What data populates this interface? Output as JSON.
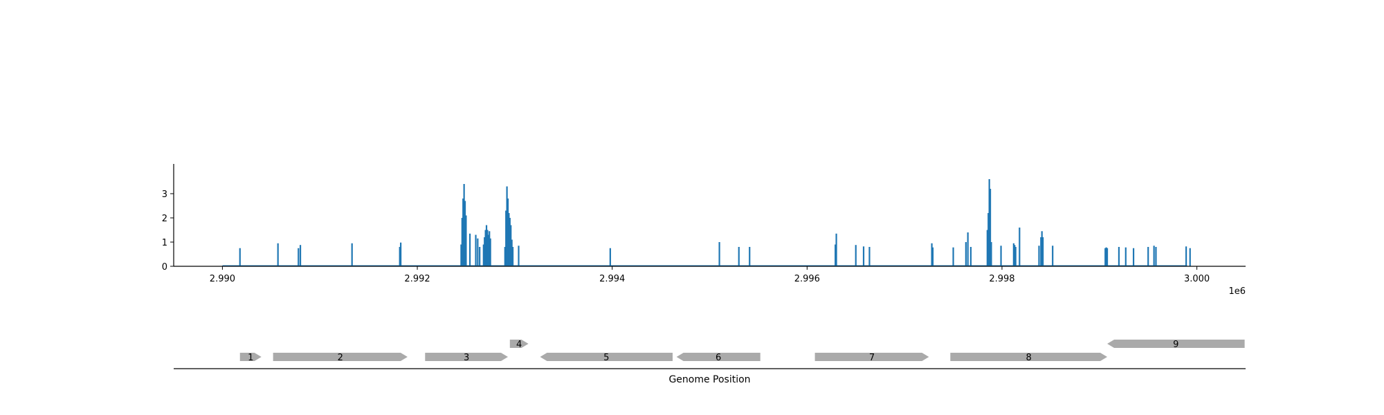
{
  "chart_data": [
    {
      "type": "bar",
      "title": "",
      "xlabel": "",
      "ylabel": "",
      "x_offset_label": "1e6",
      "xlim": [
        2989500,
        3000500
      ],
      "ylim": [
        0,
        4
      ],
      "grid": false,
      "legend": "none",
      "color": "#1f77b4",
      "baseline_range": [
        2990000,
        2999900
      ],
      "x_ticks": [
        {
          "value": 2990000,
          "label": "2.990"
        },
        {
          "value": 2992000,
          "label": "2.992"
        },
        {
          "value": 2994000,
          "label": "2.994"
        },
        {
          "value": 2996000,
          "label": "2.996"
        },
        {
          "value": 2998000,
          "label": "2.998"
        },
        {
          "value": 3000000,
          "label": "3.000"
        }
      ],
      "y_ticks": [
        {
          "value": 0,
          "label": "0"
        },
        {
          "value": 1,
          "label": "1"
        },
        {
          "value": 2,
          "label": "2"
        },
        {
          "value": 3,
          "label": "3"
        }
      ],
      "series": [
        {
          "x": [
            2990180,
            2990570,
            2990780,
            2990800,
            2991330,
            2991820,
            2991830,
            2992450,
            2992460,
            2992470,
            2992480,
            2992490,
            2992500,
            2992540,
            2992600,
            2992620,
            2992640,
            2992680,
            2992690,
            2992700,
            2992710,
            2992720,
            2992730,
            2992740,
            2992750,
            2992900,
            2992910,
            2992920,
            2992930,
            2992940,
            2992950,
            2992960,
            2992970,
            2992980,
            2993040,
            2993980,
            2995100,
            2995300,
            2995410,
            2996290,
            2996300,
            2996500,
            2996580,
            2996640,
            2997280,
            2997290,
            2997500,
            2997630,
            2997650,
            2997680,
            2997850,
            2997860,
            2997870,
            2997880,
            2997890,
            2997990,
            2998120,
            2998130,
            2998140,
            2998180,
            2998380,
            2998400,
            2998410,
            2998420,
            2998520,
            2999060,
            2999070,
            2999080,
            2999200,
            2999270,
            2999350,
            2999500,
            2999560,
            2999580,
            2999890,
            2999930
          ],
          "values": [
            0.75,
            0.95,
            0.75,
            0.88,
            0.95,
            0.8,
            0.98,
            0.9,
            2.0,
            2.8,
            3.4,
            2.7,
            2.1,
            1.35,
            1.3,
            1.15,
            0.8,
            0.9,
            1.2,
            1.5,
            1.7,
            1.5,
            1.3,
            1.45,
            1.15,
            0.8,
            2.3,
            3.3,
            2.8,
            2.2,
            2.0,
            1.7,
            1.1,
            0.8,
            0.85,
            0.75,
            1.0,
            0.8,
            0.8,
            0.9,
            1.35,
            0.88,
            0.82,
            0.8,
            0.95,
            0.78,
            0.78,
            1.0,
            1.4,
            0.8,
            1.5,
            2.2,
            3.6,
            3.2,
            1.0,
            0.85,
            0.95,
            0.88,
            0.8,
            1.6,
            0.85,
            1.2,
            1.45,
            1.2,
            0.85,
            0.75,
            0.78,
            0.75,
            0.8,
            0.78,
            0.75,
            0.8,
            0.85,
            0.8,
            0.82,
            0.75
          ]
        }
      ]
    },
    {
      "type": "gene-track",
      "xlabel": "Genome Position",
      "genes": [
        {
          "label": "1",
          "start": 2990180,
          "end": 2990400,
          "strand": "+",
          "row": 0
        },
        {
          "label": "2",
          "start": 2990520,
          "end": 2991900,
          "strand": "+",
          "row": 0
        },
        {
          "label": "3",
          "start": 2992080,
          "end": 2992930,
          "strand": "+",
          "row": 0
        },
        {
          "label": "4",
          "start": 2992950,
          "end": 2993140,
          "strand": "+",
          "row": 1
        },
        {
          "label": "5",
          "start": 2993260,
          "end": 2994620,
          "strand": "-",
          "row": 0
        },
        {
          "label": "6",
          "start": 2994660,
          "end": 2995520,
          "strand": "-",
          "row": 0
        },
        {
          "label": "7",
          "start": 2996080,
          "end": 2997250,
          "strand": "+",
          "row": 0
        },
        {
          "label": "8",
          "start": 2997470,
          "end": 2999080,
          "strand": "+",
          "row": 0
        },
        {
          "label": "9",
          "start": 2999080,
          "end": 3000490,
          "strand": "-",
          "row": 1
        }
      ],
      "color": "#aaaaaa"
    }
  ]
}
